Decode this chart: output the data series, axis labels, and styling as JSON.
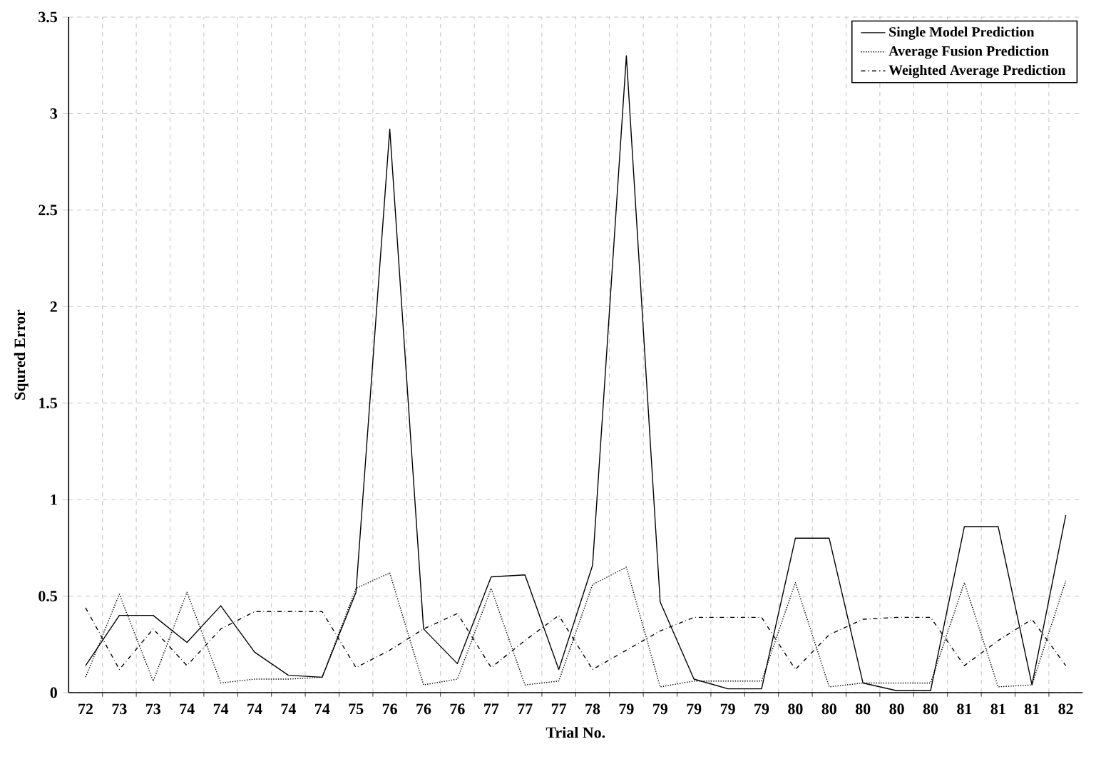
{
  "chart_data": {
    "type": "line",
    "xlabel": "Trial No.",
    "ylabel": "Squred Error",
    "categories": [
      "72",
      "73",
      "73",
      "74",
      "74",
      "74",
      "74",
      "74",
      "75",
      "76",
      "76",
      "76",
      "77",
      "77",
      "77",
      "78",
      "79",
      "79",
      "79",
      "79",
      "79",
      "80",
      "80",
      "80",
      "80",
      "80",
      "81",
      "81",
      "81",
      "82"
    ],
    "series": [
      {
        "name": "Single Model Prediction",
        "color": "#000000",
        "line_style": "solid",
        "values": [
          0.14,
          0.4,
          0.4,
          0.26,
          0.45,
          0.21,
          0.09,
          0.08,
          0.52,
          2.92,
          0.33,
          0.15,
          0.6,
          0.61,
          0.12,
          0.66,
          3.3,
          0.47,
          0.07,
          0.02,
          0.02,
          0.8,
          0.8,
          0.05,
          0.01,
          0.01,
          0.86,
          0.86,
          0.04,
          0.92
        ]
      },
      {
        "name": "Average Fusion Prediction",
        "color": "#000000",
        "line_style": "dotted",
        "values": [
          0.08,
          0.51,
          0.06,
          0.52,
          0.05,
          0.07,
          0.07,
          0.08,
          0.54,
          0.62,
          0.04,
          0.07,
          0.54,
          0.04,
          0.06,
          0.56,
          0.65,
          0.03,
          0.06,
          0.06,
          0.06,
          0.57,
          0.03,
          0.05,
          0.05,
          0.05,
          0.57,
          0.03,
          0.04,
          0.58
        ]
      },
      {
        "name": "Weighted Average Prediction",
        "color": "#000000",
        "line_style": "dashdot",
        "values": [
          0.44,
          0.12,
          0.33,
          0.14,
          0.33,
          0.42,
          0.42,
          0.42,
          0.13,
          0.22,
          0.33,
          0.41,
          0.13,
          0.27,
          0.4,
          0.12,
          0.22,
          0.32,
          0.39,
          0.39,
          0.39,
          0.12,
          0.3,
          0.38,
          0.39,
          0.39,
          0.14,
          0.27,
          0.38,
          0.14
        ]
      }
    ],
    "ylim": [
      0,
      3.5
    ],
    "yticks": [
      0,
      0.5,
      1,
      1.5,
      2,
      2.5,
      3,
      3.5
    ],
    "grid": true,
    "legend": "top right",
    "marker": "none"
  }
}
